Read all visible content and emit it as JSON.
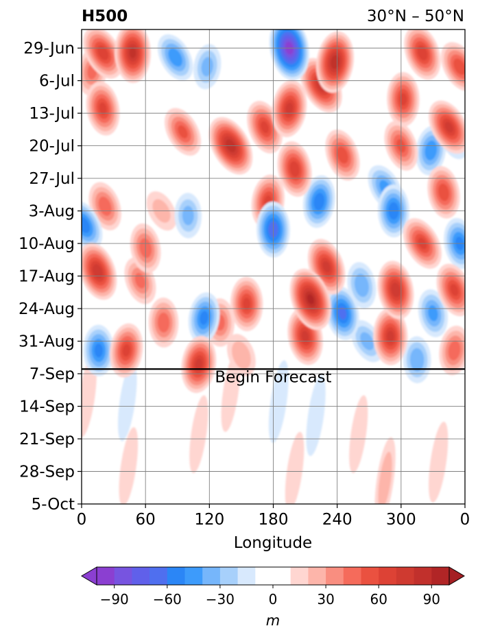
{
  "chart_data": {
    "type": "heatmap",
    "title_left": "H500",
    "title_right": "30°N – 50°N",
    "xlabel": "Longitude",
    "x_ticks": [
      "0",
      "60",
      "120",
      "180",
      "240",
      "300",
      "0"
    ],
    "y_ticks": [
      "29-Jun",
      "6-Jul",
      "13-Jul",
      "20-Jul",
      "27-Jul",
      "3-Aug",
      "10-Aug",
      "17-Aug",
      "24-Aug",
      "31-Aug",
      "7-Sep",
      "14-Sep",
      "21-Sep",
      "28-Sep",
      "5-Oct"
    ],
    "y_range": [
      "2025-06-25",
      "2025-10-05"
    ],
    "x_range": [
      0,
      360
    ],
    "forecast_line": {
      "date": "2025-09-06",
      "label": "Begin Forecast"
    },
    "grid": true,
    "colorbar": {
      "label": "m",
      "ticks": [
        "−90",
        "−60",
        "−30",
        "0",
        "30",
        "60",
        "90"
      ],
      "tick_values": [
        -90,
        -60,
        -30,
        0,
        30,
        60,
        90
      ],
      "levels": [
        -100,
        -90,
        -80,
        -70,
        -60,
        -50,
        -40,
        -30,
        -20,
        -10,
        10,
        20,
        30,
        40,
        50,
        60,
        70,
        80,
        90,
        100
      ],
      "colors": [
        "#8b3fd1",
        "#7754e0",
        "#6060ea",
        "#4f6fef",
        "#2b86f6",
        "#3d9bfb",
        "#76b6fb",
        "#a7d0fb",
        "#d8e9fd",
        "#ffffff",
        "#ffd6d1",
        "#fdb5aa",
        "#f98e80",
        "#f56b5b",
        "#ea5140",
        "#dd4235",
        "#cf3a30",
        "#c1302c",
        "#b12526"
      ],
      "under_color": "#8b3fd1",
      "over_color": "#a51f23",
      "extend": "both"
    },
    "anomaly_features": [
      {
        "lon": 20,
        "date": "2025-06-30",
        "value": 65
      },
      {
        "lon": 48,
        "date": "2025-06-30",
        "value": 80
      },
      {
        "lon": 195,
        "date": "2025-06-29",
        "value": -95
      },
      {
        "lon": 238,
        "date": "2025-07-02",
        "value": 85
      },
      {
        "lon": 195,
        "date": "2025-07-12",
        "value": 70
      },
      {
        "lon": 225,
        "date": "2025-07-07",
        "value": 75
      },
      {
        "lon": 140,
        "date": "2025-07-20",
        "value": 85
      },
      {
        "lon": 172,
        "date": "2025-07-16",
        "value": 60
      },
      {
        "lon": 95,
        "date": "2025-07-17",
        "value": 50
      },
      {
        "lon": 20,
        "date": "2025-07-12",
        "value": 60
      },
      {
        "lon": 10,
        "date": "2025-07-04",
        "value": 40
      },
      {
        "lon": 345,
        "date": "2025-07-16",
        "value": 70
      },
      {
        "lon": 302,
        "date": "2025-07-10",
        "value": 60
      },
      {
        "lon": 320,
        "date": "2025-06-30",
        "value": 65
      },
      {
        "lon": 355,
        "date": "2025-07-03",
        "value": 55
      },
      {
        "lon": 245,
        "date": "2025-07-22",
        "value": 55
      },
      {
        "lon": 200,
        "date": "2025-07-25",
        "value": 65
      },
      {
        "lon": 175,
        "date": "2025-08-01",
        "value": 60
      },
      {
        "lon": 300,
        "date": "2025-07-20",
        "value": 50
      },
      {
        "lon": 340,
        "date": "2025-07-30",
        "value": 55
      },
      {
        "lon": 350,
        "date": "2025-07-18",
        "value": -35
      },
      {
        "lon": 328,
        "date": "2025-07-21",
        "value": -45
      },
      {
        "lon": 285,
        "date": "2025-07-29",
        "value": -40
      },
      {
        "lon": 293,
        "date": "2025-08-03",
        "value": -55
      },
      {
        "lon": 223,
        "date": "2025-08-01",
        "value": -55
      },
      {
        "lon": 180,
        "date": "2025-08-07",
        "value": -65
      },
      {
        "lon": 2,
        "date": "2025-08-06",
        "value": -55
      },
      {
        "lon": 100,
        "date": "2025-08-04",
        "value": -30
      },
      {
        "lon": 88,
        "date": "2025-07-01",
        "value": -45
      },
      {
        "lon": 118,
        "date": "2025-07-03",
        "value": -30
      },
      {
        "lon": 22,
        "date": "2025-08-02",
        "value": 45
      },
      {
        "lon": 60,
        "date": "2025-08-11",
        "value": 45
      },
      {
        "lon": 15,
        "date": "2025-08-16",
        "value": 75
      },
      {
        "lon": 55,
        "date": "2025-08-18",
        "value": 40
      },
      {
        "lon": 215,
        "date": "2025-08-22",
        "value": 90
      },
      {
        "lon": 230,
        "date": "2025-08-15",
        "value": 70
      },
      {
        "lon": 210,
        "date": "2025-08-30",
        "value": 70
      },
      {
        "lon": 295,
        "date": "2025-08-20",
        "value": 75
      },
      {
        "lon": 290,
        "date": "2025-08-30",
        "value": 70
      },
      {
        "lon": 320,
        "date": "2025-08-10",
        "value": 60
      },
      {
        "lon": 350,
        "date": "2025-08-20",
        "value": 60
      },
      {
        "lon": 355,
        "date": "2025-08-10",
        "value": -50
      },
      {
        "lon": 330,
        "date": "2025-08-25",
        "value": -40
      },
      {
        "lon": 245,
        "date": "2025-08-25",
        "value": -60
      },
      {
        "lon": 263,
        "date": "2025-08-19",
        "value": -35
      },
      {
        "lon": 268,
        "date": "2025-08-31",
        "value": -30
      },
      {
        "lon": 155,
        "date": "2025-08-23",
        "value": 60
      },
      {
        "lon": 130,
        "date": "2025-08-27",
        "value": 40
      },
      {
        "lon": 110,
        "date": "2025-09-05",
        "value": 70
      },
      {
        "lon": 42,
        "date": "2025-09-02",
        "value": 60
      },
      {
        "lon": 77,
        "date": "2025-08-27",
        "value": 45
      },
      {
        "lon": 16,
        "date": "2025-09-02",
        "value": -50
      },
      {
        "lon": 115,
        "date": "2025-08-26",
        "value": -50
      },
      {
        "lon": 150,
        "date": "2025-09-03",
        "value": 25
      },
      {
        "lon": 315,
        "date": "2025-09-04",
        "value": -35
      },
      {
        "lon": 350,
        "date": "2025-09-02",
        "value": 45
      },
      {
        "lon": 75,
        "date": "2025-08-03",
        "value": 20
      },
      {
        "lon": 185,
        "date": "2025-09-13",
        "value": -18
      },
      {
        "lon": 220,
        "date": "2025-09-16",
        "value": -15
      },
      {
        "lon": 43,
        "date": "2025-09-13",
        "value": -12
      },
      {
        "lon": 140,
        "date": "2025-09-11",
        "value": 12
      },
      {
        "lon": 5,
        "date": "2025-09-12",
        "value": 15
      },
      {
        "lon": 335,
        "date": "2025-09-26",
        "value": 15
      },
      {
        "lon": 285,
        "date": "2025-09-30",
        "value": 25
      },
      {
        "lon": 200,
        "date": "2025-09-28",
        "value": 12
      },
      {
        "lon": 44,
        "date": "2025-09-27",
        "value": 12
      },
      {
        "lon": 260,
        "date": "2025-09-20",
        "value": 10
      },
      {
        "lon": 110,
        "date": "2025-09-20",
        "value": 10
      }
    ]
  }
}
